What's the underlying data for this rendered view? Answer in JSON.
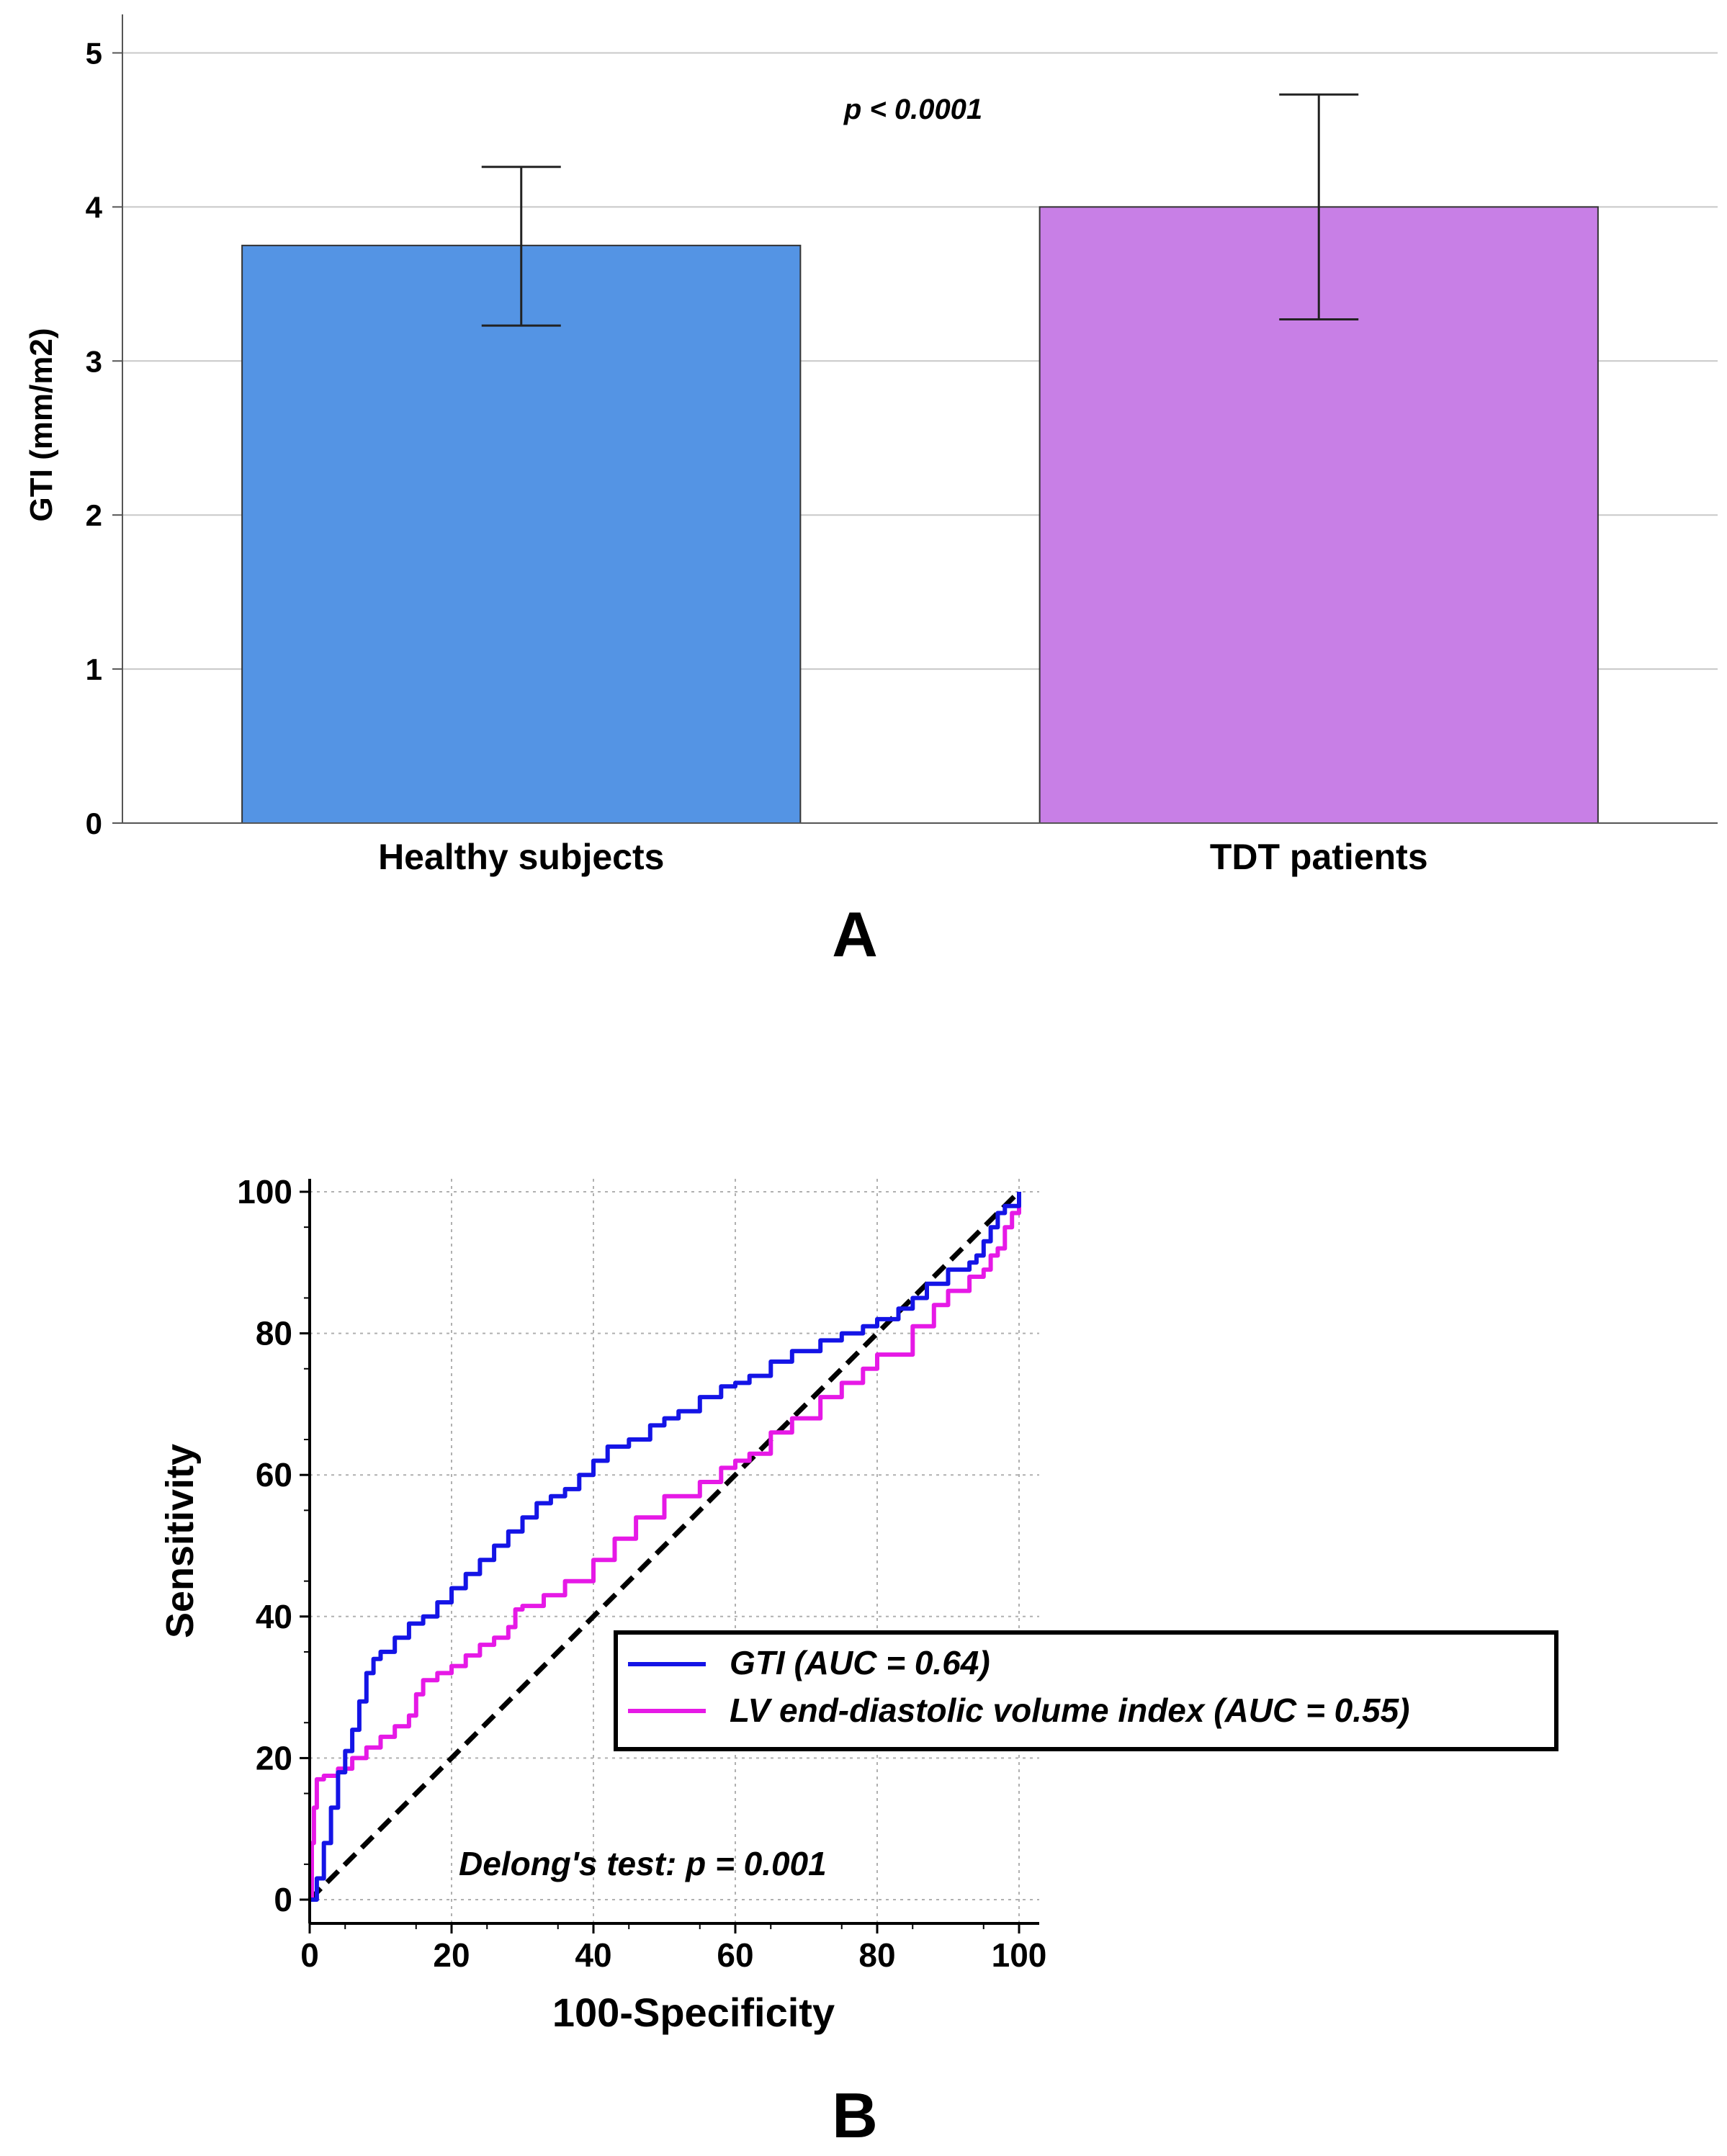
{
  "chart_data": [
    {
      "type": "bar",
      "panel_label": "A",
      "ylabel": "GTI (mm/m2)",
      "xlabel": "",
      "ylim": [
        0,
        5.25
      ],
      "yticks": [
        0,
        1,
        2,
        3,
        4,
        5
      ],
      "grid": true,
      "categories": [
        "Healthy subjects",
        "TDT patients"
      ],
      "values": [
        3.75,
        4.0
      ],
      "error_low": [
        3.23,
        3.27
      ],
      "error_high": [
        4.26,
        4.73
      ],
      "bar_colors": [
        "#5494E4",
        "#C87FE6"
      ],
      "annotation": "p < 0.0001"
    },
    {
      "type": "line",
      "panel_label": "B",
      "xlabel": "100-Specificity",
      "ylabel": "Sensitivity",
      "xlim": [
        0,
        100
      ],
      "ylim": [
        0,
        100
      ],
      "xticks": [
        0,
        20,
        40,
        60,
        80,
        100
      ],
      "yticks": [
        0,
        20,
        40,
        60,
        80,
        100
      ],
      "grid": true,
      "annotation": "Delong's test: p = 0.001",
      "legend_position": "lower-right",
      "series": [
        {
          "name": "GTI (AUC = 0.64)",
          "color": "#1414E6",
          "x": [
            0,
            1,
            2,
            3,
            4,
            5,
            6,
            7,
            8,
            9,
            10,
            12,
            14,
            16,
            18,
            20,
            22,
            24,
            26,
            28,
            30,
            32,
            34,
            36,
            38,
            40,
            42,
            45,
            48,
            50,
            52,
            55,
            58,
            60,
            62,
            65,
            68,
            72,
            75,
            78,
            80,
            83,
            85,
            87,
            90,
            93,
            94,
            95,
            96,
            97,
            98,
            100
          ],
          "y": [
            0,
            3,
            8,
            13,
            18,
            21,
            24,
            28,
            32,
            34,
            35,
            37,
            39,
            40,
            42,
            44,
            46,
            48,
            50,
            52,
            54,
            56,
            57,
            58,
            60,
            62,
            64,
            65,
            67,
            68,
            69,
            71,
            72.5,
            73,
            74,
            76,
            77.5,
            79,
            80,
            81,
            82,
            83.5,
            85,
            87,
            89,
            90,
            91,
            93,
            95,
            97,
            98,
            100
          ]
        },
        {
          "name": "LV end-diastolic volume index (AUC = 0.55)",
          "color": "#E619E6",
          "x": [
            0,
            0.3,
            0.6,
            1,
            2,
            4,
            6,
            8,
            10,
            12,
            14,
            15,
            16,
            18,
            20,
            22,
            24,
            26,
            28,
            29,
            30,
            33,
            36,
            40,
            43,
            46,
            50,
            55,
            58,
            60,
            62,
            65,
            68,
            72,
            75,
            78,
            80,
            85,
            88,
            90,
            93,
            95,
            96,
            97,
            98,
            99,
            100
          ],
          "y": [
            0,
            8,
            13,
            17,
            17.5,
            18.5,
            20,
            21.5,
            23,
            24.5,
            26,
            29,
            31,
            32,
            33,
            34.5,
            36,
            37,
            38.5,
            41,
            41.5,
            43,
            45,
            48,
            51,
            54,
            57,
            59,
            61,
            62,
            63,
            66,
            68,
            71,
            73,
            75,
            77,
            81,
            84,
            86,
            88,
            89,
            91,
            92,
            95,
            97,
            100
          ]
        },
        {
          "name": "reference",
          "color": "#000000",
          "dashed": true,
          "x": [
            0,
            100
          ],
          "y": [
            0,
            100
          ]
        }
      ]
    }
  ]
}
